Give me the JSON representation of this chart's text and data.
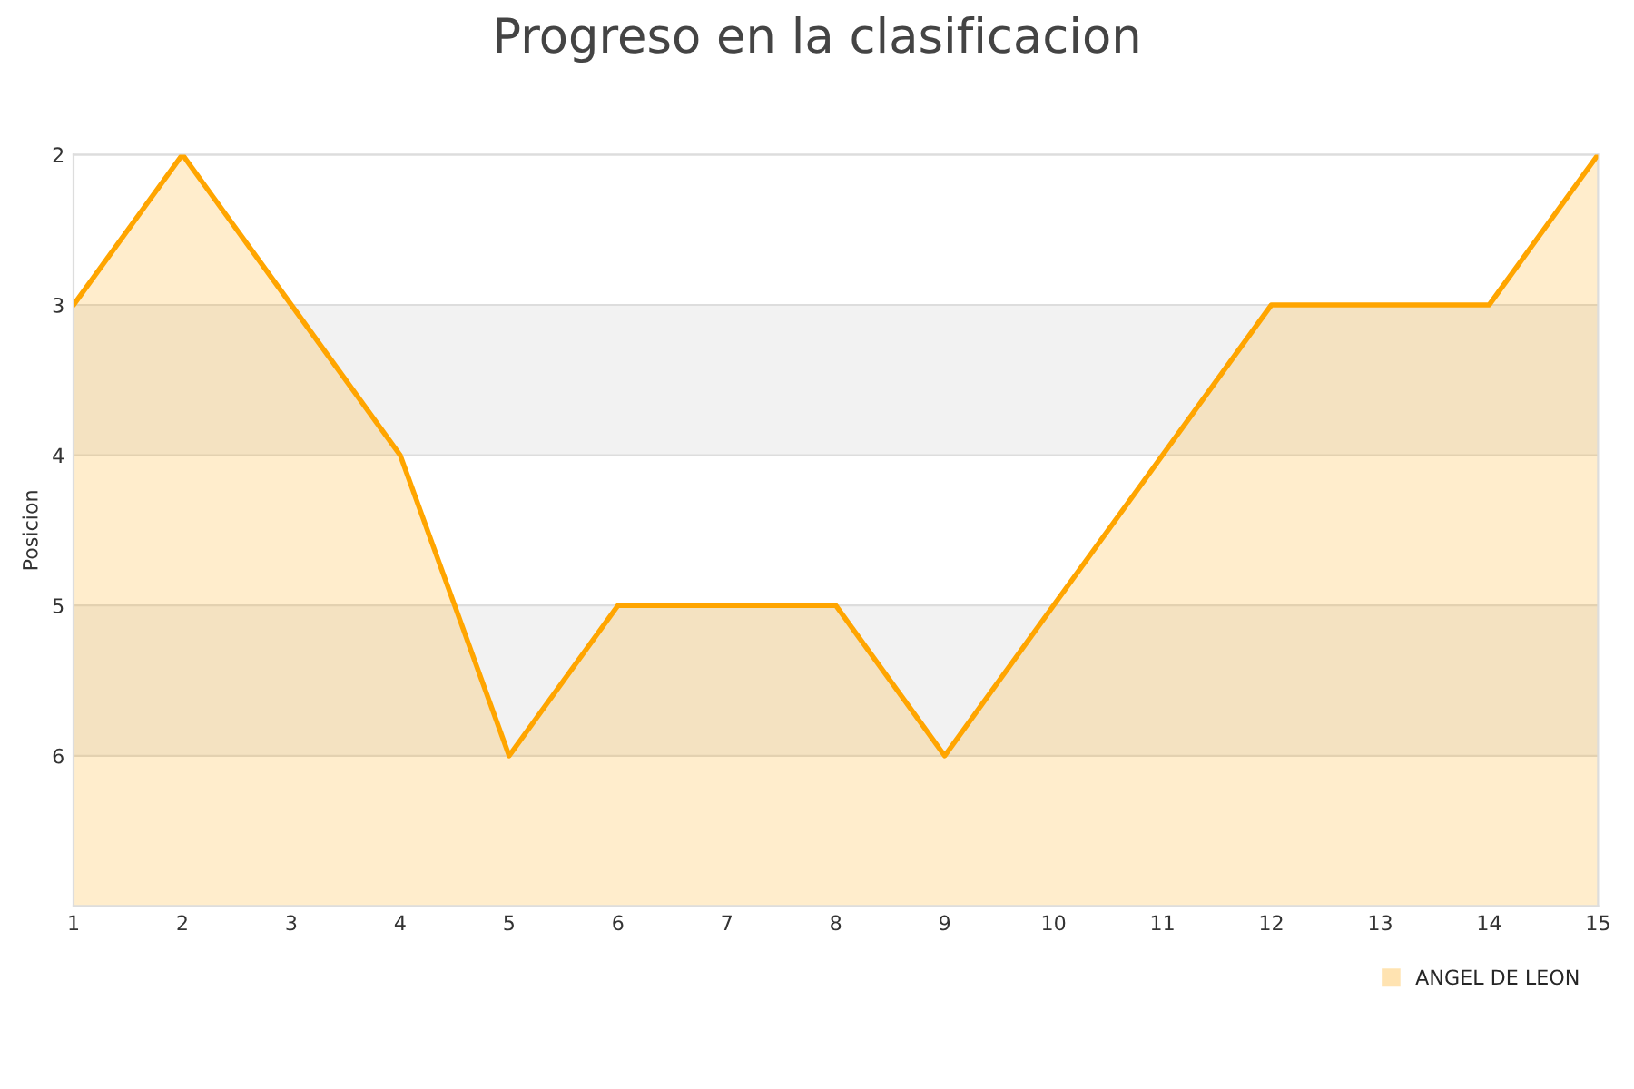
{
  "chart_data": {
    "type": "area",
    "title": "Progreso en la clasificacion",
    "ylabel": "Posicion",
    "x": [
      1,
      2,
      3,
      4,
      5,
      6,
      7,
      8,
      9,
      10,
      11,
      12,
      13,
      14,
      15
    ],
    "series": [
      {
        "name": "ANGEL DE LEON",
        "color": "#ffa500",
        "values": [
          3,
          2,
          3,
          4,
          6,
          5,
          5,
          5,
          6,
          5,
          4,
          3,
          3,
          3,
          2
        ]
      }
    ],
    "xlim": [
      1,
      15
    ],
    "xticks": [
      1,
      2,
      3,
      4,
      5,
      6,
      7,
      8,
      9,
      10,
      11,
      12,
      13,
      14,
      15
    ],
    "ylim": [
      7,
      2
    ],
    "yticks": [
      2,
      3,
      4,
      5,
      6
    ],
    "bands": [
      {
        "axis": "y",
        "from": 3,
        "to": 4,
        "color": "#f2f2f2"
      },
      {
        "axis": "y",
        "from": 5,
        "to": 6,
        "color": "#f2f2f2"
      }
    ],
    "grid": "y",
    "legend": "bottom right",
    "marker": "none",
    "line_style": "solid"
  }
}
